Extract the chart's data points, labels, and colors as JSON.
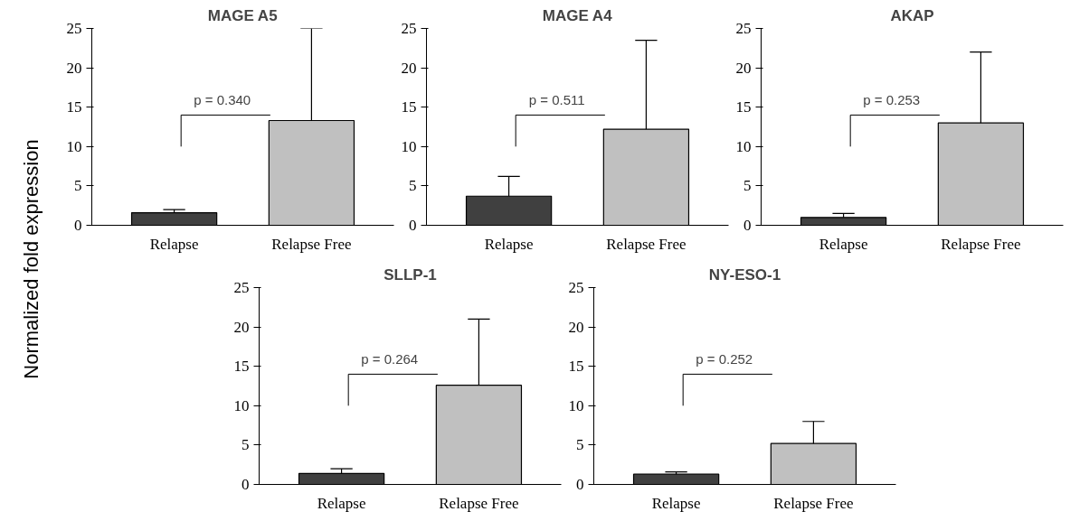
{
  "chart_data": [
    {
      "type": "bar",
      "title": "MAGE A5",
      "ylabel": "Normalized fold expression",
      "categories": [
        "Relapse",
        "Relapse Free"
      ],
      "values": [
        1.6,
        13.3
      ],
      "errors": [
        [
          1.6,
          2.0
        ],
        [
          13.3,
          25
        ]
      ],
      "colors": [
        "#404040",
        "#c0c0c0"
      ],
      "ylim": [
        0,
        25
      ],
      "yticks": [
        0,
        5,
        10,
        15,
        20,
        25
      ],
      "grid": false,
      "legend": false,
      "annotations": [
        "p = 0.340"
      ]
    },
    {
      "type": "bar",
      "title": "MAGE A4",
      "categories": [
        "Relapse",
        "Relapse Free"
      ],
      "values": [
        3.7,
        12.2
      ],
      "errors": [
        [
          3.7,
          6.2
        ],
        [
          12.2,
          23.5
        ]
      ],
      "colors": [
        "#404040",
        "#c0c0c0"
      ],
      "ylim": [
        0,
        25
      ],
      "yticks": [
        0,
        5,
        10,
        15,
        20,
        25
      ],
      "grid": false,
      "legend": false,
      "annotations": [
        "p = 0.511"
      ]
    },
    {
      "type": "bar",
      "title": "AKAP",
      "categories": [
        "Relapse",
        "Relapse Free"
      ],
      "values": [
        1.0,
        13.0
      ],
      "errors": [
        [
          1.0,
          1.5
        ],
        [
          13.0,
          22.0
        ]
      ],
      "colors": [
        "#404040",
        "#c0c0c0"
      ],
      "ylim": [
        0,
        25
      ],
      "yticks": [
        0,
        5,
        10,
        15,
        20,
        25
      ],
      "grid": false,
      "legend": false,
      "annotations": [
        "p = 0.253"
      ]
    },
    {
      "type": "bar",
      "title": "SLLP-1",
      "categories": [
        "Relapse",
        "Relapse Free"
      ],
      "values": [
        1.4,
        12.6
      ],
      "errors": [
        [
          1.4,
          2.0
        ],
        [
          12.6,
          21.0
        ]
      ],
      "colors": [
        "#404040",
        "#c0c0c0"
      ],
      "ylim": [
        0,
        25
      ],
      "yticks": [
        0,
        5,
        10,
        15,
        20,
        25
      ],
      "grid": false,
      "legend": false,
      "annotations": [
        "p = 0.264"
      ]
    },
    {
      "type": "bar",
      "title": "NY-ESO-1",
      "categories": [
        "Relapse",
        "Relapse Free"
      ],
      "values": [
        1.3,
        5.2
      ],
      "errors": [
        [
          1.3,
          1.6
        ],
        [
          5.2,
          8.0
        ]
      ],
      "colors": [
        "#404040",
        "#c0c0c0"
      ],
      "ylim": [
        0,
        25
      ],
      "yticks": [
        0,
        5,
        10,
        15,
        20,
        25
      ],
      "grid": false,
      "legend": false,
      "annotations": [
        "p = 0.252"
      ]
    }
  ]
}
